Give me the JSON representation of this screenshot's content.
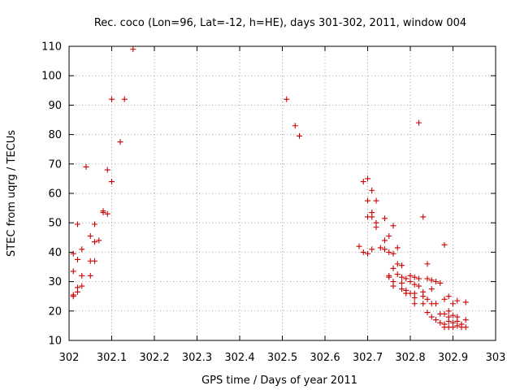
{
  "chart_data": {
    "type": "scatter",
    "title": "Rec. coco (Lon=96, Lat=-12, h=HE), days 301-302, 2011, window 004",
    "xlabel": "GPS time / Days of year 2011",
    "ylabel": "STEC from uqrg / TECUs",
    "xlim": [
      302,
      303
    ],
    "ylim": [
      10,
      110
    ],
    "xticks": [
      302,
      302.1,
      302.2,
      302.3,
      302.4,
      302.5,
      302.6,
      302.7,
      302.8,
      302.9,
      303
    ],
    "xtick_labels": [
      "302",
      "302.1",
      "302.2",
      "302.3",
      "302.4",
      "302.5",
      "302.6",
      "302.7",
      "302.8",
      "302.9",
      "303"
    ],
    "yticks": [
      10,
      20,
      30,
      40,
      50,
      60,
      70,
      80,
      90,
      100,
      110
    ],
    "ytick_labels": [
      "10",
      "20",
      "30",
      "40",
      "50",
      "60",
      "70",
      "80",
      "90",
      "100",
      "110"
    ],
    "grid": true,
    "marker": "plus",
    "color": "#cc0000",
    "points": [
      [
        302.01,
        25.5
      ],
      [
        302.01,
        25.0
      ],
      [
        302.01,
        33.5
      ],
      [
        302.01,
        39.5
      ],
      [
        302.02,
        49.5
      ],
      [
        302.02,
        37.5
      ],
      [
        302.02,
        28.0
      ],
      [
        302.02,
        26.5
      ],
      [
        302.03,
        41.0
      ],
      [
        302.03,
        32.0
      ],
      [
        302.03,
        28.5
      ],
      [
        302.04,
        69.0
      ],
      [
        302.05,
        45.5
      ],
      [
        302.05,
        37.0
      ],
      [
        302.05,
        32.0
      ],
      [
        302.06,
        49.5
      ],
      [
        302.06,
        43.5
      ],
      [
        302.06,
        37.0
      ],
      [
        302.07,
        44.0
      ],
      [
        302.08,
        54.0
      ],
      [
        302.08,
        53.5
      ],
      [
        302.09,
        53.0
      ],
      [
        302.09,
        68.0
      ],
      [
        302.1,
        92.0
      ],
      [
        302.1,
        64.0
      ],
      [
        302.12,
        77.5
      ],
      [
        302.13,
        92.0
      ],
      [
        302.15,
        109.0
      ],
      [
        302.51,
        92.0
      ],
      [
        302.53,
        83.0
      ],
      [
        302.54,
        79.5
      ],
      [
        302.68,
        42.0
      ],
      [
        302.69,
        64.0
      ],
      [
        302.69,
        40.0
      ],
      [
        302.7,
        65.0
      ],
      [
        302.7,
        57.5
      ],
      [
        302.7,
        52.0
      ],
      [
        302.7,
        39.5
      ],
      [
        302.71,
        61.0
      ],
      [
        302.71,
        53.5
      ],
      [
        302.71,
        52.0
      ],
      [
        302.71,
        41.0
      ],
      [
        302.72,
        57.5
      ],
      [
        302.72,
        50.0
      ],
      [
        302.72,
        48.5
      ],
      [
        302.73,
        41.5
      ],
      [
        302.74,
        51.5
      ],
      [
        302.74,
        44.0
      ],
      [
        302.74,
        41.0
      ],
      [
        302.75,
        45.5
      ],
      [
        302.75,
        40.0
      ],
      [
        302.75,
        32.0
      ],
      [
        302.75,
        31.5
      ],
      [
        302.76,
        49.0
      ],
      [
        302.76,
        39.5
      ],
      [
        302.76,
        34.5
      ],
      [
        302.76,
        30.0
      ],
      [
        302.76,
        28.5
      ],
      [
        302.77,
        41.5
      ],
      [
        302.77,
        36.0
      ],
      [
        302.77,
        32.5
      ],
      [
        302.78,
        35.5
      ],
      [
        302.78,
        31.5
      ],
      [
        302.78,
        29.5
      ],
      [
        302.78,
        27.5
      ],
      [
        302.79,
        31.0
      ],
      [
        302.79,
        27.0
      ],
      [
        302.79,
        26.0
      ],
      [
        302.8,
        32.0
      ],
      [
        302.8,
        30.0
      ],
      [
        302.8,
        26.0
      ],
      [
        302.81,
        31.5
      ],
      [
        302.81,
        29.0
      ],
      [
        302.81,
        26.0
      ],
      [
        302.81,
        24.5
      ],
      [
        302.81,
        22.5
      ],
      [
        302.82,
        84.0
      ],
      [
        302.82,
        31.0
      ],
      [
        302.82,
        28.5
      ],
      [
        302.83,
        52.0
      ],
      [
        302.83,
        26.5
      ],
      [
        302.83,
        25.0
      ],
      [
        302.83,
        22.5
      ],
      [
        302.84,
        36.0
      ],
      [
        302.84,
        31.0
      ],
      [
        302.84,
        24.0
      ],
      [
        302.84,
        19.5
      ],
      [
        302.85,
        30.5
      ],
      [
        302.85,
        27.5
      ],
      [
        302.85,
        22.5
      ],
      [
        302.85,
        18.0
      ],
      [
        302.86,
        30.0
      ],
      [
        302.86,
        22.5
      ],
      [
        302.86,
        17.0
      ],
      [
        302.87,
        29.5
      ],
      [
        302.87,
        19.0
      ],
      [
        302.87,
        16.0
      ],
      [
        302.88,
        42.5
      ],
      [
        302.88,
        24.0
      ],
      [
        302.88,
        19.0
      ],
      [
        302.88,
        15.5
      ],
      [
        302.88,
        14.5
      ],
      [
        302.89,
        25.0
      ],
      [
        302.89,
        20.0
      ],
      [
        302.89,
        18.0
      ],
      [
        302.89,
        16.5
      ],
      [
        302.89,
        14.5
      ],
      [
        302.9,
        22.5
      ],
      [
        302.9,
        18.5
      ],
      [
        302.9,
        16.0
      ],
      [
        302.9,
        14.5
      ],
      [
        302.91,
        23.5
      ],
      [
        302.91,
        18.0
      ],
      [
        302.91,
        16.5
      ],
      [
        302.91,
        15.0
      ],
      [
        302.92,
        15.5
      ],
      [
        302.92,
        14.5
      ],
      [
        302.93,
        23.0
      ],
      [
        302.93,
        17.0
      ],
      [
        302.93,
        14.5
      ]
    ]
  }
}
